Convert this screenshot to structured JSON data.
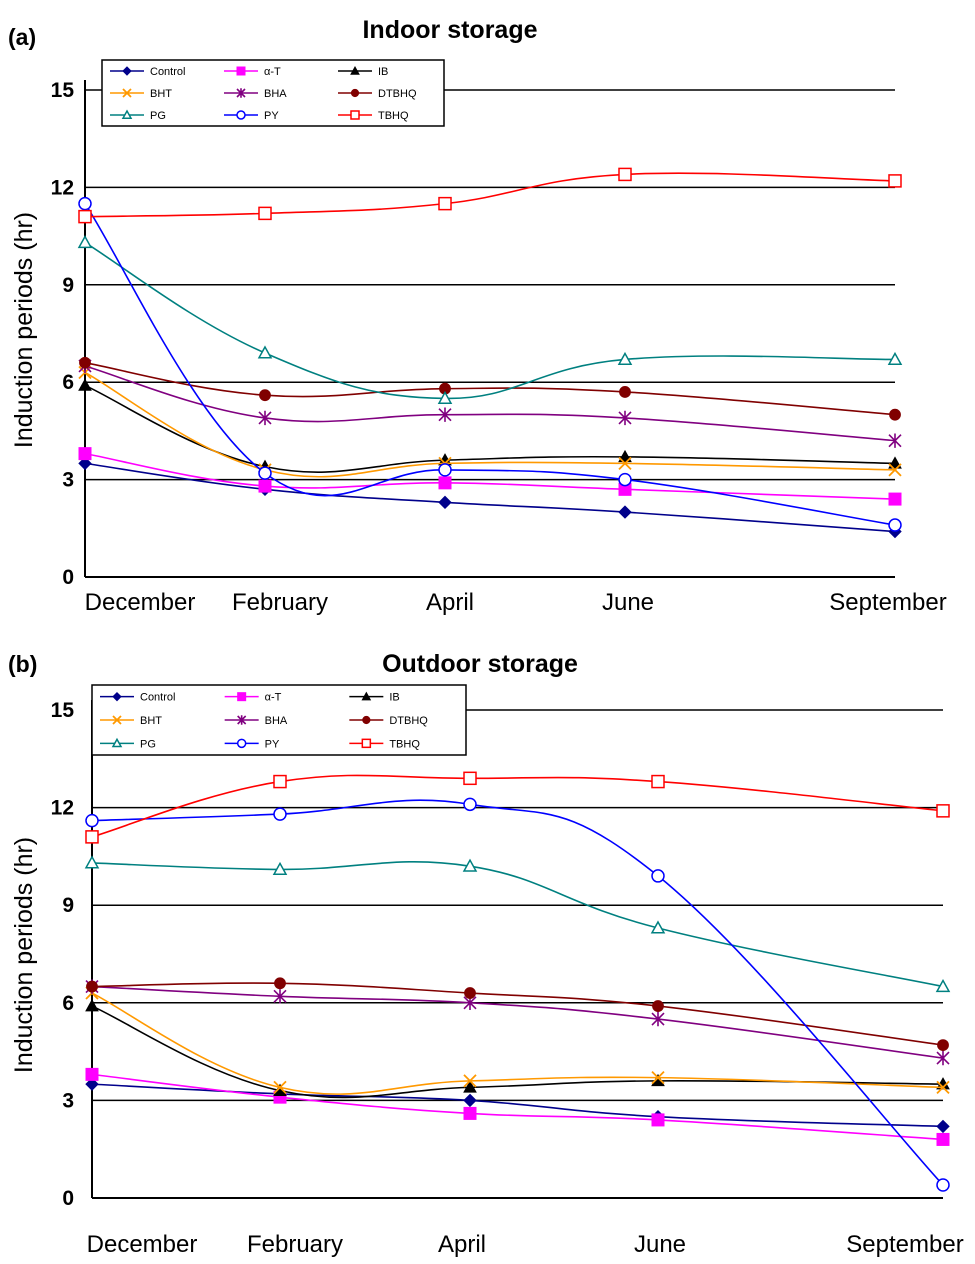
{
  "chart_data": [
    {
      "panel_label": "(a)",
      "title": "Indoor storage",
      "type": "line",
      "ylabel": "Induction periods (hr)",
      "xlabel": "",
      "categories": [
        "December",
        "February",
        "April",
        "June",
        "September"
      ],
      "y_ticks": [
        "0",
        "3",
        "6",
        "9",
        "12",
        "15"
      ],
      "ylim": [
        0,
        15
      ],
      "grid": "horizontal",
      "legend_position": "top-left",
      "series": [
        {
          "name": "Control",
          "color": "#00008b",
          "marker": "diamond",
          "values": [
            3.5,
            2.7,
            2.3,
            2.0,
            1.4
          ]
        },
        {
          "name": "α-T",
          "color": "#ff00ff",
          "marker": "square",
          "values": [
            3.8,
            2.8,
            2.9,
            2.7,
            2.4
          ]
        },
        {
          "name": "IB",
          "color": "#000000",
          "marker": "triangle",
          "values": [
            5.9,
            3.4,
            3.6,
            3.7,
            3.5
          ]
        },
        {
          "name": "BHT",
          "color": "#ff9900",
          "marker": "x",
          "values": [
            6.3,
            3.3,
            3.5,
            3.5,
            3.3
          ]
        },
        {
          "name": "BHA",
          "color": "#800080",
          "marker": "star",
          "values": [
            6.5,
            4.9,
            5.0,
            4.9,
            4.2
          ]
        },
        {
          "name": "DTBHQ",
          "color": "#800000",
          "marker": "circle",
          "values": [
            6.6,
            5.6,
            5.8,
            5.7,
            5.0
          ]
        },
        {
          "name": "PG",
          "color": "#008080",
          "marker": "triangle-open",
          "values": [
            10.3,
            6.9,
            5.5,
            6.7,
            6.7
          ]
        },
        {
          "name": "PY",
          "color": "#0000ff",
          "marker": "circle-open",
          "values": [
            11.5,
            3.2,
            3.3,
            3.0,
            1.6
          ]
        },
        {
          "name": "TBHQ",
          "color": "#ff0000",
          "marker": "square-open",
          "values": [
            11.1,
            11.2,
            11.5,
            12.4,
            12.2
          ]
        }
      ]
    },
    {
      "panel_label": "(b)",
      "title": "Outdoor storage",
      "type": "line",
      "ylabel": "Induction periods (hr)",
      "xlabel": "",
      "categories": [
        "December",
        "February",
        "April",
        "June",
        "September"
      ],
      "y_ticks": [
        "0",
        "3",
        "6",
        "9",
        "12",
        "15"
      ],
      "ylim": [
        0,
        15
      ],
      "grid": "horizontal",
      "legend_position": "top-left",
      "series": [
        {
          "name": "Control",
          "color": "#00008b",
          "marker": "diamond",
          "values": [
            3.5,
            3.2,
            3.0,
            2.5,
            2.2
          ]
        },
        {
          "name": "α-T",
          "color": "#ff00ff",
          "marker": "square",
          "values": [
            3.8,
            3.1,
            2.6,
            2.4,
            1.8
          ]
        },
        {
          "name": "IB",
          "color": "#000000",
          "marker": "triangle",
          "values": [
            5.9,
            3.3,
            3.4,
            3.6,
            3.5
          ]
        },
        {
          "name": "BHT",
          "color": "#ff9900",
          "marker": "x",
          "values": [
            6.3,
            3.4,
            3.6,
            3.7,
            3.4
          ]
        },
        {
          "name": "BHA",
          "color": "#800080",
          "marker": "star",
          "values": [
            6.5,
            6.2,
            6.0,
            5.5,
            4.3
          ]
        },
        {
          "name": "DTBHQ",
          "color": "#800000",
          "marker": "circle",
          "values": [
            6.5,
            6.6,
            6.3,
            5.9,
            4.7
          ]
        },
        {
          "name": "PG",
          "color": "#008080",
          "marker": "triangle-open",
          "values": [
            10.3,
            10.1,
            10.2,
            8.3,
            6.5
          ]
        },
        {
          "name": "PY",
          "color": "#0000ff",
          "marker": "circle-open",
          "values": [
            11.6,
            11.8,
            12.1,
            9.9,
            0.4
          ]
        },
        {
          "name": "TBHQ",
          "color": "#ff0000",
          "marker": "square-open",
          "values": [
            11.1,
            12.8,
            12.9,
            12.8,
            11.9
          ]
        }
      ]
    }
  ]
}
